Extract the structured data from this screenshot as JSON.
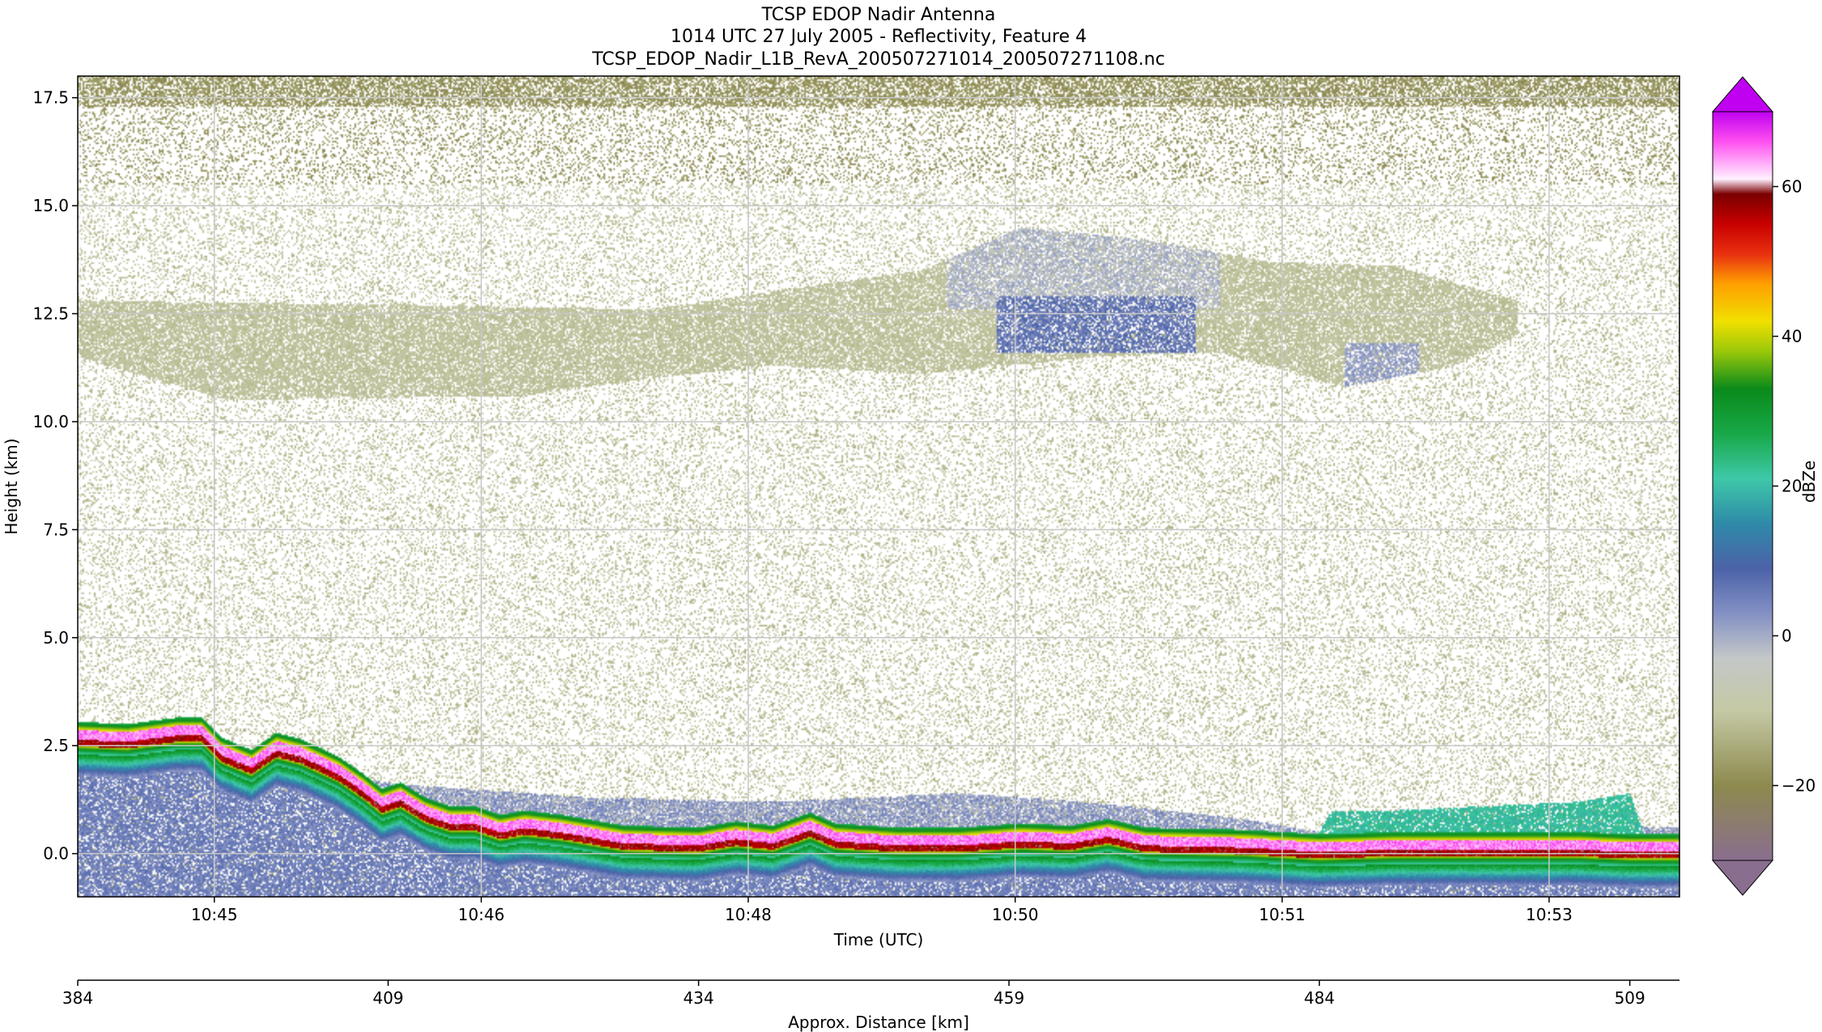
{
  "chart_data": {
    "type": "heatmap",
    "title_lines": [
      "TCSP EDOP Nadir Antenna",
      "1014 UTC 27 July 2005 - Reflectivity, Feature 4",
      "TCSP_EDOP_Nadir_L1B_RevA_200507271014_200507271108.nc"
    ],
    "xlabel": "Time (UTC)",
    "ylabel": "Height (km)",
    "x2label": "Approx. Distance [km]",
    "time_ticks": [
      "10:45",
      "10:46",
      "10:48",
      "10:50",
      "10:51",
      "10:53"
    ],
    "time_tick_distance_km": [
      395.0,
      416.5,
      438.0,
      459.5,
      481.0,
      502.5
    ],
    "yticks": [
      0.0,
      2.5,
      5.0,
      7.5,
      10.0,
      12.5,
      15.0,
      17.5
    ],
    "ylim": [
      -1.0,
      18.0
    ],
    "distance_ticks": [
      384,
      409,
      434,
      459,
      484,
      509
    ],
    "distance_range_km": [
      384,
      513
    ],
    "grid": true,
    "colorbar": {
      "label": "dBZe",
      "ticks": [
        -20,
        0,
        20,
        40,
        60
      ],
      "range": [
        -30,
        70
      ],
      "extend": "both",
      "stops": [
        {
          "v": -30,
          "c": "#8a6e8f"
        },
        {
          "v": -20,
          "c": "#8d8a4e"
        },
        {
          "v": -10,
          "c": "#c5c9a4"
        },
        {
          "v": -3,
          "c": "#c4c8c8"
        },
        {
          "v": 3,
          "c": "#8390c4"
        },
        {
          "v": 9,
          "c": "#4c62a8"
        },
        {
          "v": 15,
          "c": "#2e8aa8"
        },
        {
          "v": 21,
          "c": "#3ec8a8"
        },
        {
          "v": 27,
          "c": "#18a848"
        },
        {
          "v": 33,
          "c": "#0a8a1a"
        },
        {
          "v": 38,
          "c": "#9ac80a"
        },
        {
          "v": 42,
          "c": "#f0e000"
        },
        {
          "v": 47,
          "c": "#ffa000"
        },
        {
          "v": 51,
          "c": "#e83010"
        },
        {
          "v": 55,
          "c": "#c80000"
        },
        {
          "v": 59,
          "c": "#7a0000"
        },
        {
          "v": 61,
          "c": "#fff0ff"
        },
        {
          "v": 66,
          "c": "#ff50f0"
        },
        {
          "v": 70,
          "c": "#c000f0"
        }
      ]
    },
    "features": [
      {
        "name": "surface echo",
        "value_range": [
          40,
          66
        ]
      },
      {
        "name": "low-level precipitation layer",
        "height_range_km": [
          0.0,
          2.0
        ],
        "value_range": [
          -5,
          25
        ]
      },
      {
        "name": "upper cloud layer",
        "height_range_km": [
          10.5,
          14.5
        ],
        "value_range": [
          -12,
          8
        ]
      },
      {
        "name": "background noise",
        "height_range_km": [
          -1.0,
          18.0
        ],
        "value_range": [
          -25,
          -10
        ]
      }
    ]
  }
}
